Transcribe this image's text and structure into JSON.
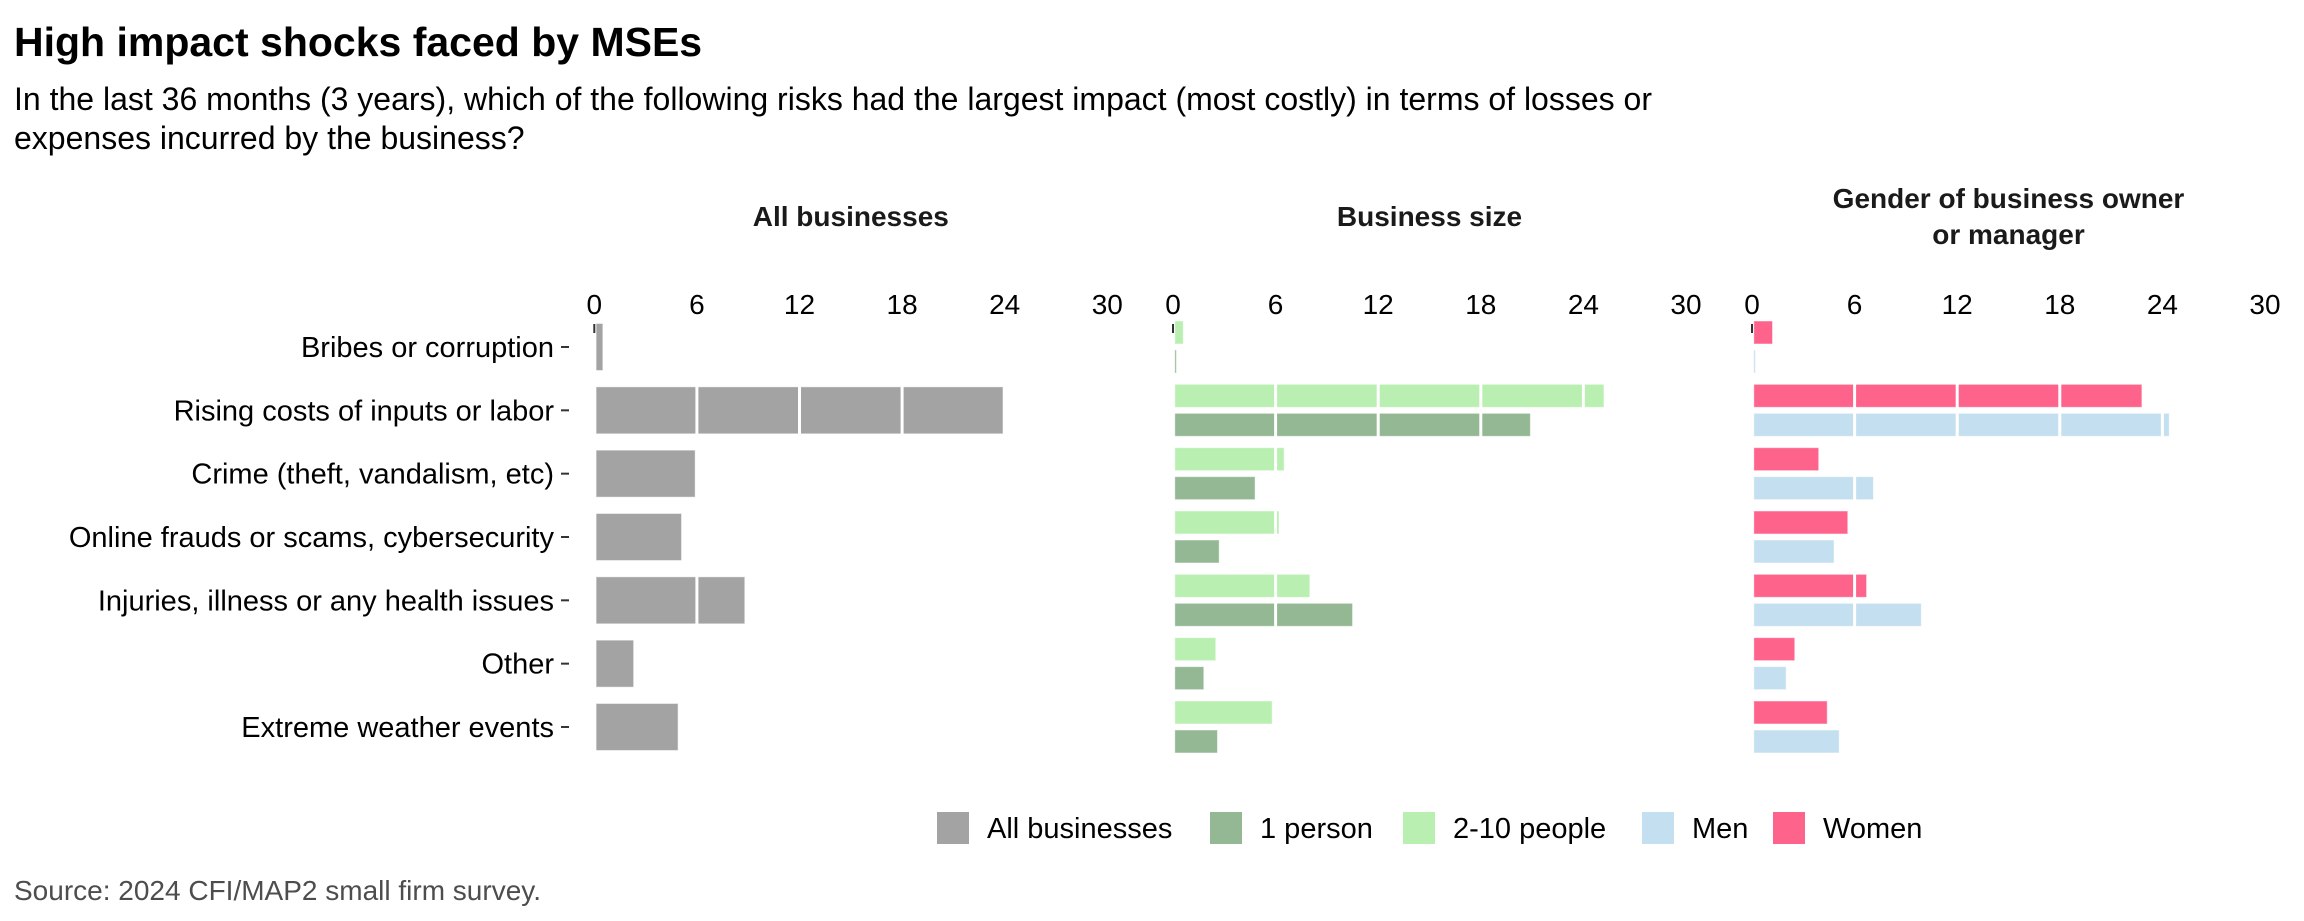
{
  "chart_data": {
    "type": "bar",
    "orientation": "horizontal",
    "title": "High impact shocks faced by MSEs",
    "subtitle_lines": [
      "In the last 36 months (3 years), which of the following risks had the largest impact (most costly) in terms of losses or",
      "expenses incurred by the business?"
    ],
    "source": "Source: 2024 CFI/MAP2 small firm survey.",
    "categories": [
      "Bribes or corruption",
      "Rising costs of inputs or labor",
      "Crime (theft, vandalism, etc)",
      "Online frauds or scams, cybersecurity",
      "Injuries, illness or any health issues",
      "Other",
      "Extreme weather events"
    ],
    "xlim": [
      0,
      30
    ],
    "xticks": [
      0,
      6,
      12,
      18,
      24,
      30
    ],
    "xtick_labels": [
      "0",
      "6",
      "12",
      "18",
      "24",
      "30"
    ],
    "grid": "vertical white gridlines at x ticks drawn over bars",
    "panels": [
      {
        "title_lines": [
          "All businesses"
        ],
        "series": [
          {
            "name": "All businesses",
            "color": "#a3a3a3",
            "values": [
              0.5,
              23.9,
              5.9,
              5.1,
              8.8,
              2.3,
              4.9
            ]
          }
        ]
      },
      {
        "title_lines": [
          "Business size"
        ],
        "series": [
          {
            "name": "2-10 people",
            "color": "#b9efb1",
            "values": [
              0.6,
              25.2,
              6.5,
              6.2,
              8.0,
              2.5,
              5.8
            ]
          },
          {
            "name": "1 person",
            "color": "#93b893",
            "values": [
              0.2,
              20.9,
              4.8,
              2.7,
              10.5,
              1.8,
              2.6
            ]
          }
        ]
      },
      {
        "title_lines": [
          "Gender of business owner",
          "or manager"
        ],
        "series": [
          {
            "name": "Women",
            "color": "#fe638c",
            "values": [
              1.2,
              22.8,
              3.9,
              5.6,
              6.7,
              2.5,
              4.4
            ]
          },
          {
            "name": "Men",
            "color": "#c4dff0",
            "values": [
              0.2,
              24.4,
              7.1,
              4.8,
              9.9,
              2.0,
              5.1
            ]
          }
        ]
      }
    ],
    "legend": {
      "position": "bottom",
      "items": [
        {
          "label": "All businesses",
          "color": "#a3a3a3"
        },
        {
          "label": "1 person",
          "color": "#93b893"
        },
        {
          "label": "2-10 people",
          "color": "#b9efb1"
        },
        {
          "label": "Men",
          "color": "#c4dff0"
        },
        {
          "label": "Women",
          "color": "#fe638c"
        }
      ]
    },
    "xlabel": "",
    "ylabel": ""
  }
}
